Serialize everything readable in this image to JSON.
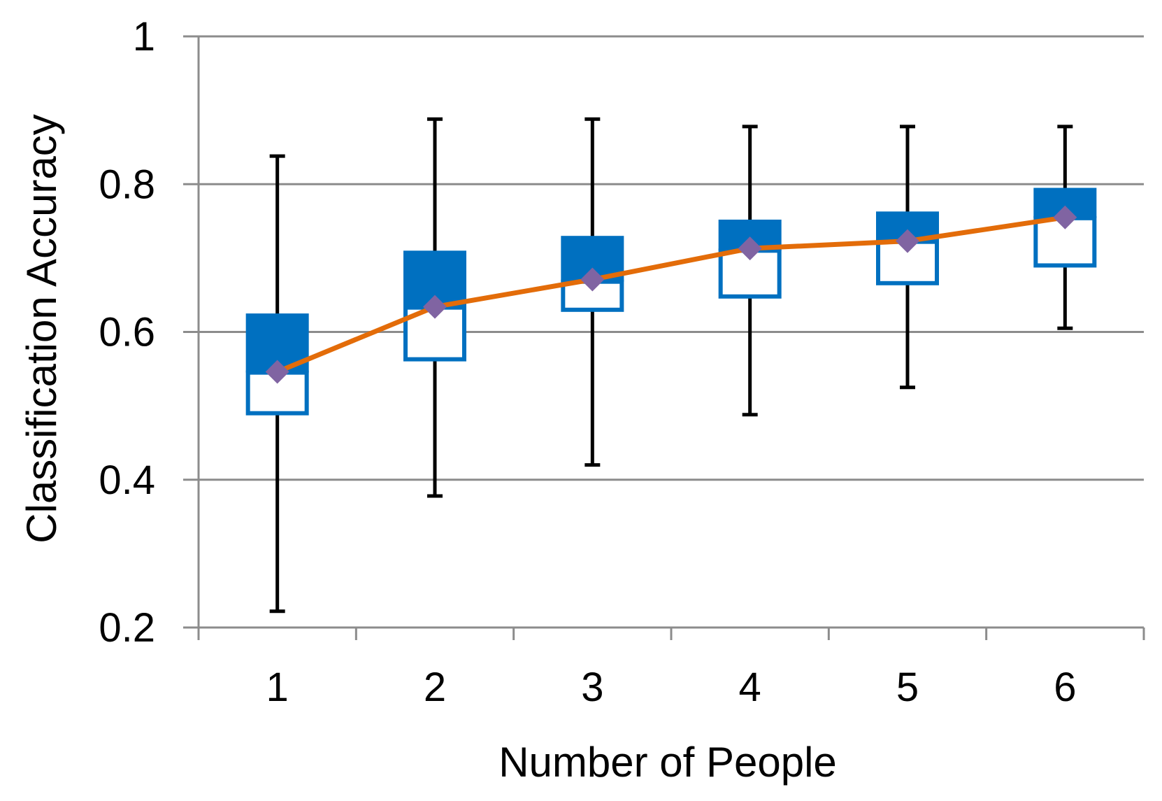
{
  "chart_data": {
    "type": "box",
    "title": "",
    "xlabel": "Number of People",
    "ylabel": "Classification Accuracy",
    "categories": [
      "1",
      "2",
      "3",
      "4",
      "5",
      "6"
    ],
    "ylim": [
      0.2,
      1.0
    ],
    "yticks": [
      "0.2",
      "0.4",
      "0.6",
      "0.8",
      "1"
    ],
    "grid": "horizontal",
    "legend": "none",
    "series": [
      {
        "whisker_min": [
          0.222,
          0.378,
          0.42,
          0.488,
          0.525,
          0.605
        ],
        "q1": [
          0.49,
          0.563,
          0.63,
          0.648,
          0.666,
          0.69
        ],
        "median": [
          0.545,
          0.633,
          0.668,
          0.71,
          0.722,
          0.754
        ],
        "q3": [
          0.625,
          0.71,
          0.73,
          0.752,
          0.763,
          0.795
        ],
        "whisker_max": [
          0.838,
          0.888,
          0.888,
          0.878,
          0.878,
          0.878
        ],
        "mean": [
          0.546,
          0.634,
          0.671,
          0.713,
          0.723,
          0.755
        ]
      }
    ],
    "colors": {
      "upper_box": "#0070C0",
      "lower_box_edge": "#0070C0",
      "whisker": "#000000",
      "mean_line": "#E36C09",
      "mean_marker": "#8064A2",
      "grid": "#8C8C8C"
    }
  }
}
